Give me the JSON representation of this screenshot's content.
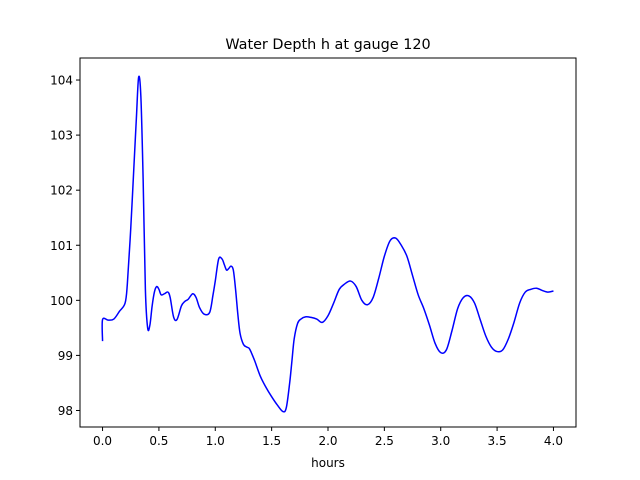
{
  "chart_data": {
    "type": "line",
    "title": "Water Depth h at gauge 120",
    "xlabel": "hours",
    "ylabel": "",
    "xlim": [
      -0.2,
      4.2
    ],
    "ylim": [
      97.7,
      104.4
    ],
    "x_ticks": [
      0.0,
      0.5,
      1.0,
      1.5,
      2.0,
      2.5,
      3.0,
      3.5,
      4.0
    ],
    "x_tick_labels": [
      "0.0",
      "0.5",
      "1.0",
      "1.5",
      "2.0",
      "2.5",
      "3.0",
      "3.5",
      "4.0"
    ],
    "y_ticks": [
      98,
      99,
      100,
      101,
      102,
      103,
      104
    ],
    "y_tick_labels": [
      "98",
      "99",
      "100",
      "101",
      "102",
      "103",
      "104"
    ],
    "grid": false,
    "legend": "none",
    "series": [
      {
        "color": "#0000ff",
        "x": [
          0.0,
          0.0,
          0.05,
          0.1,
          0.15,
          0.2,
          0.22,
          0.25,
          0.28,
          0.3,
          0.32,
          0.34,
          0.36,
          0.38,
          0.4,
          0.42,
          0.44,
          0.46,
          0.48,
          0.5,
          0.52,
          0.55,
          0.58,
          0.6,
          0.63,
          0.66,
          0.7,
          0.73,
          0.76,
          0.8,
          0.83,
          0.86,
          0.9,
          0.95,
          0.98,
          1.0,
          1.03,
          1.06,
          1.08,
          1.1,
          1.12,
          1.14,
          1.16,
          1.18,
          1.2,
          1.22,
          1.25,
          1.28,
          1.3,
          1.32,
          1.35,
          1.4,
          1.45,
          1.5,
          1.55,
          1.6,
          1.63,
          1.66,
          1.68,
          1.7,
          1.73,
          1.76,
          1.8,
          1.85,
          1.9,
          1.95,
          2.0,
          2.05,
          2.1,
          2.15,
          2.2,
          2.25,
          2.3,
          2.35,
          2.4,
          2.45,
          2.5,
          2.55,
          2.6,
          2.65,
          2.7,
          2.75,
          2.8,
          2.85,
          2.9,
          2.95,
          3.0,
          3.05,
          3.1,
          3.15,
          3.2,
          3.25,
          3.3,
          3.35,
          3.4,
          3.45,
          3.5,
          3.55,
          3.6,
          3.65,
          3.7,
          3.75,
          3.8,
          3.85,
          3.9,
          3.95,
          4.0
        ],
        "values": [
          99.26,
          99.65,
          99.64,
          99.66,
          99.8,
          99.95,
          100.3,
          101.3,
          102.5,
          103.3,
          104.05,
          103.7,
          102.2,
          100.2,
          99.5,
          99.55,
          99.9,
          100.15,
          100.25,
          100.2,
          100.1,
          100.12,
          100.15,
          100.05,
          99.7,
          99.65,
          99.9,
          99.98,
          100.02,
          100.12,
          100.05,
          99.87,
          99.75,
          99.78,
          100.1,
          100.35,
          100.75,
          100.75,
          100.65,
          100.55,
          100.58,
          100.62,
          100.55,
          100.2,
          99.75,
          99.4,
          99.2,
          99.15,
          99.13,
          99.05,
          98.9,
          98.62,
          98.42,
          98.25,
          98.1,
          97.98,
          98.05,
          98.5,
          98.9,
          99.3,
          99.58,
          99.66,
          99.7,
          99.69,
          99.66,
          99.6,
          99.72,
          99.95,
          100.2,
          100.3,
          100.35,
          100.25,
          100.0,
          99.92,
          100.05,
          100.4,
          100.8,
          101.08,
          101.13,
          101.0,
          100.8,
          100.45,
          100.1,
          99.85,
          99.55,
          99.22,
          99.05,
          99.1,
          99.45,
          99.85,
          100.05,
          100.08,
          99.95,
          99.65,
          99.35,
          99.15,
          99.07,
          99.1,
          99.3,
          99.6,
          99.95,
          100.15,
          100.2,
          100.22,
          100.18,
          100.15,
          100.17
        ]
      }
    ]
  }
}
